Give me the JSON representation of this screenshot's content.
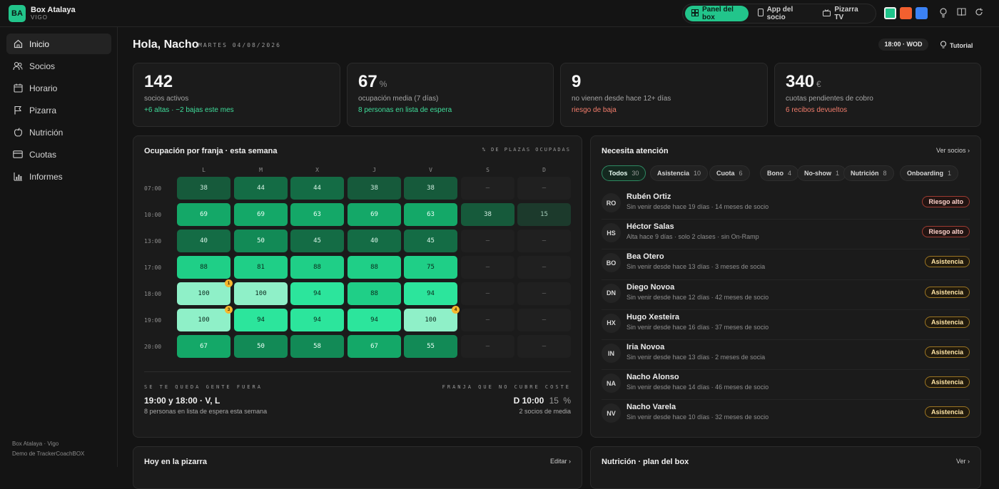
{
  "brand": {
    "logo": "BA",
    "name": "Box Atalaya",
    "city": "VIGO"
  },
  "topbar": {
    "views": [
      {
        "label": "Panel del box",
        "icon": "grid-icon",
        "active": true
      },
      {
        "label": "App del socio",
        "icon": "phone-icon",
        "active": false
      },
      {
        "label": "Pizarra TV",
        "icon": "tv-icon",
        "active": false
      }
    ],
    "theme_colors": [
      "#1fc48a",
      "#f2602f",
      "#3b82f6"
    ],
    "icons": [
      "bulb-icon",
      "book-icon",
      "refresh-icon"
    ]
  },
  "sidebar": {
    "items": [
      {
        "label": "Inicio",
        "icon": "home-icon",
        "active": true
      },
      {
        "label": "Socios",
        "icon": "users-icon",
        "active": false
      },
      {
        "label": "Horario",
        "icon": "calendar-icon",
        "active": false
      },
      {
        "label": "Pizarra",
        "icon": "flag-icon",
        "active": false
      },
      {
        "label": "Nutrición",
        "icon": "apple-icon",
        "active": false
      },
      {
        "label": "Cuotas",
        "icon": "card-icon",
        "active": false
      },
      {
        "label": "Informes",
        "icon": "bar-chart-icon",
        "active": false
      }
    ],
    "footer_line1": "Box Atalaya · Vigo",
    "footer_line2": "Demo de TrackerCoachBOX"
  },
  "header": {
    "greeting": "Hola, Nacho",
    "date": "MARTES 04/08/2026",
    "next_class": "18:00 · WOD",
    "tutorial": "Tutorial"
  },
  "kpis": [
    {
      "value": "142",
      "unit": "",
      "label": "socios activos",
      "note": "+6 altas · −2 bajas este mes",
      "tone": "green"
    },
    {
      "value": "67",
      "unit": "%",
      "label": "ocupación media (7 días)",
      "note": "8 personas en lista de espera",
      "tone": "green"
    },
    {
      "value": "9",
      "unit": "",
      "label": "no vienen desde hace 12+ días",
      "note": "riesgo de baja",
      "tone": "red"
    },
    {
      "value": "340",
      "unit": "€",
      "label": "cuotas pendientes de cobro",
      "note": "6 recibos devueltos",
      "tone": "red"
    }
  ],
  "occupancy": {
    "title": "Ocupación por franja · esta semana",
    "hint": "% DE PLAZAS OCUPADAS",
    "days": [
      "L",
      "M",
      "X",
      "J",
      "V",
      "S",
      "D"
    ],
    "empty_mark": "—",
    "rows": [
      {
        "time": "07:00",
        "values": [
          38,
          44,
          44,
          38,
          38,
          null,
          null
        ]
      },
      {
        "time": "10:00",
        "values": [
          69,
          69,
          63,
          69,
          63,
          38,
          15
        ]
      },
      {
        "time": "13:00",
        "values": [
          40,
          50,
          45,
          40,
          45,
          null,
          null
        ]
      },
      {
        "time": "17:00",
        "values": [
          88,
          81,
          88,
          88,
          75,
          null,
          null
        ]
      },
      {
        "time": "18:00",
        "values": [
          100,
          100,
          94,
          88,
          94,
          null,
          null
        ]
      },
      {
        "time": "19:00",
        "values": [
          100,
          94,
          94,
          94,
          100,
          null,
          null
        ]
      },
      {
        "time": "20:00",
        "values": [
          67,
          50,
          58,
          67,
          55,
          null,
          null
        ]
      }
    ],
    "waitlist_badges": [
      {
        "time": "18:00",
        "day": "L",
        "count": "1"
      },
      {
        "time": "19:00",
        "day": "L",
        "count": "3"
      },
      {
        "time": "19:00",
        "day": "V",
        "count": "4"
      }
    ],
    "left_label": "SE TE QUEDA GENTE FUERA",
    "left_value": "19:00 y 18:00 · V, L",
    "left_sub": "8 personas en lista de espera esta semana",
    "right_label": "FRANJA QUE NO CUBRE COSTE",
    "right_value": "D 10:00",
    "right_pct": "15",
    "right_unit": "%",
    "right_sub": "2 socios de media"
  },
  "attention": {
    "title": "Necesita atención",
    "link": "Ver socios ›",
    "filters": [
      {
        "label": "Todos",
        "count": "30",
        "active": true
      },
      {
        "label": "Asistencia",
        "count": "10",
        "active": false
      },
      {
        "label": "Cuota",
        "count": "6",
        "active": false
      },
      {
        "label": "Bono",
        "count": "4",
        "active": false
      },
      {
        "label": "No-show",
        "count": "1",
        "active": false
      },
      {
        "label": "Nutrición",
        "count": "8",
        "active": false
      },
      {
        "label": "Onboarding",
        "count": "1",
        "active": false
      }
    ],
    "members": [
      {
        "initials": "RO",
        "name": "Rubén Ortiz",
        "detail": "Sin venir desde hace 19 días · 14 meses de socio",
        "tag": "Riesgo alto",
        "kind": "risk"
      },
      {
        "initials": "HS",
        "name": "Héctor Salas",
        "detail": "Alta hace 9 días · solo 2 clases · sin On-Ramp",
        "tag": "Riesgo alto",
        "kind": "risk"
      },
      {
        "initials": "BO",
        "name": "Bea Otero",
        "detail": "Sin venir desde hace 13 días · 3 meses de socia",
        "tag": "Asistencia",
        "kind": "asis"
      },
      {
        "initials": "DN",
        "name": "Diego Novoa",
        "detail": "Sin venir desde hace 12 días · 42 meses de socio",
        "tag": "Asistencia",
        "kind": "asis"
      },
      {
        "initials": "HX",
        "name": "Hugo Xesteira",
        "detail": "Sin venir desde hace 16 días · 37 meses de socio",
        "tag": "Asistencia",
        "kind": "asis"
      },
      {
        "initials": "IN",
        "name": "Iria Novoa",
        "detail": "Sin venir desde hace 13 días · 2 meses de socia",
        "tag": "Asistencia",
        "kind": "asis"
      },
      {
        "initials": "NA",
        "name": "Nacho Alonso",
        "detail": "Sin venir desde hace 14 días · 46 meses de socio",
        "tag": "Asistencia",
        "kind": "asis"
      },
      {
        "initials": "NV",
        "name": "Nacho Varela",
        "detail": "Sin venir desde hace 10 días · 32 meses de socio",
        "tag": "Asistencia",
        "kind": "asis"
      }
    ]
  },
  "bottom": {
    "pizarra_title": "Hoy en la pizarra",
    "pizarra_link": "Editar ›",
    "nutricion_title": "Nutrición · plan del box",
    "nutricion_link": "Ver ›"
  }
}
